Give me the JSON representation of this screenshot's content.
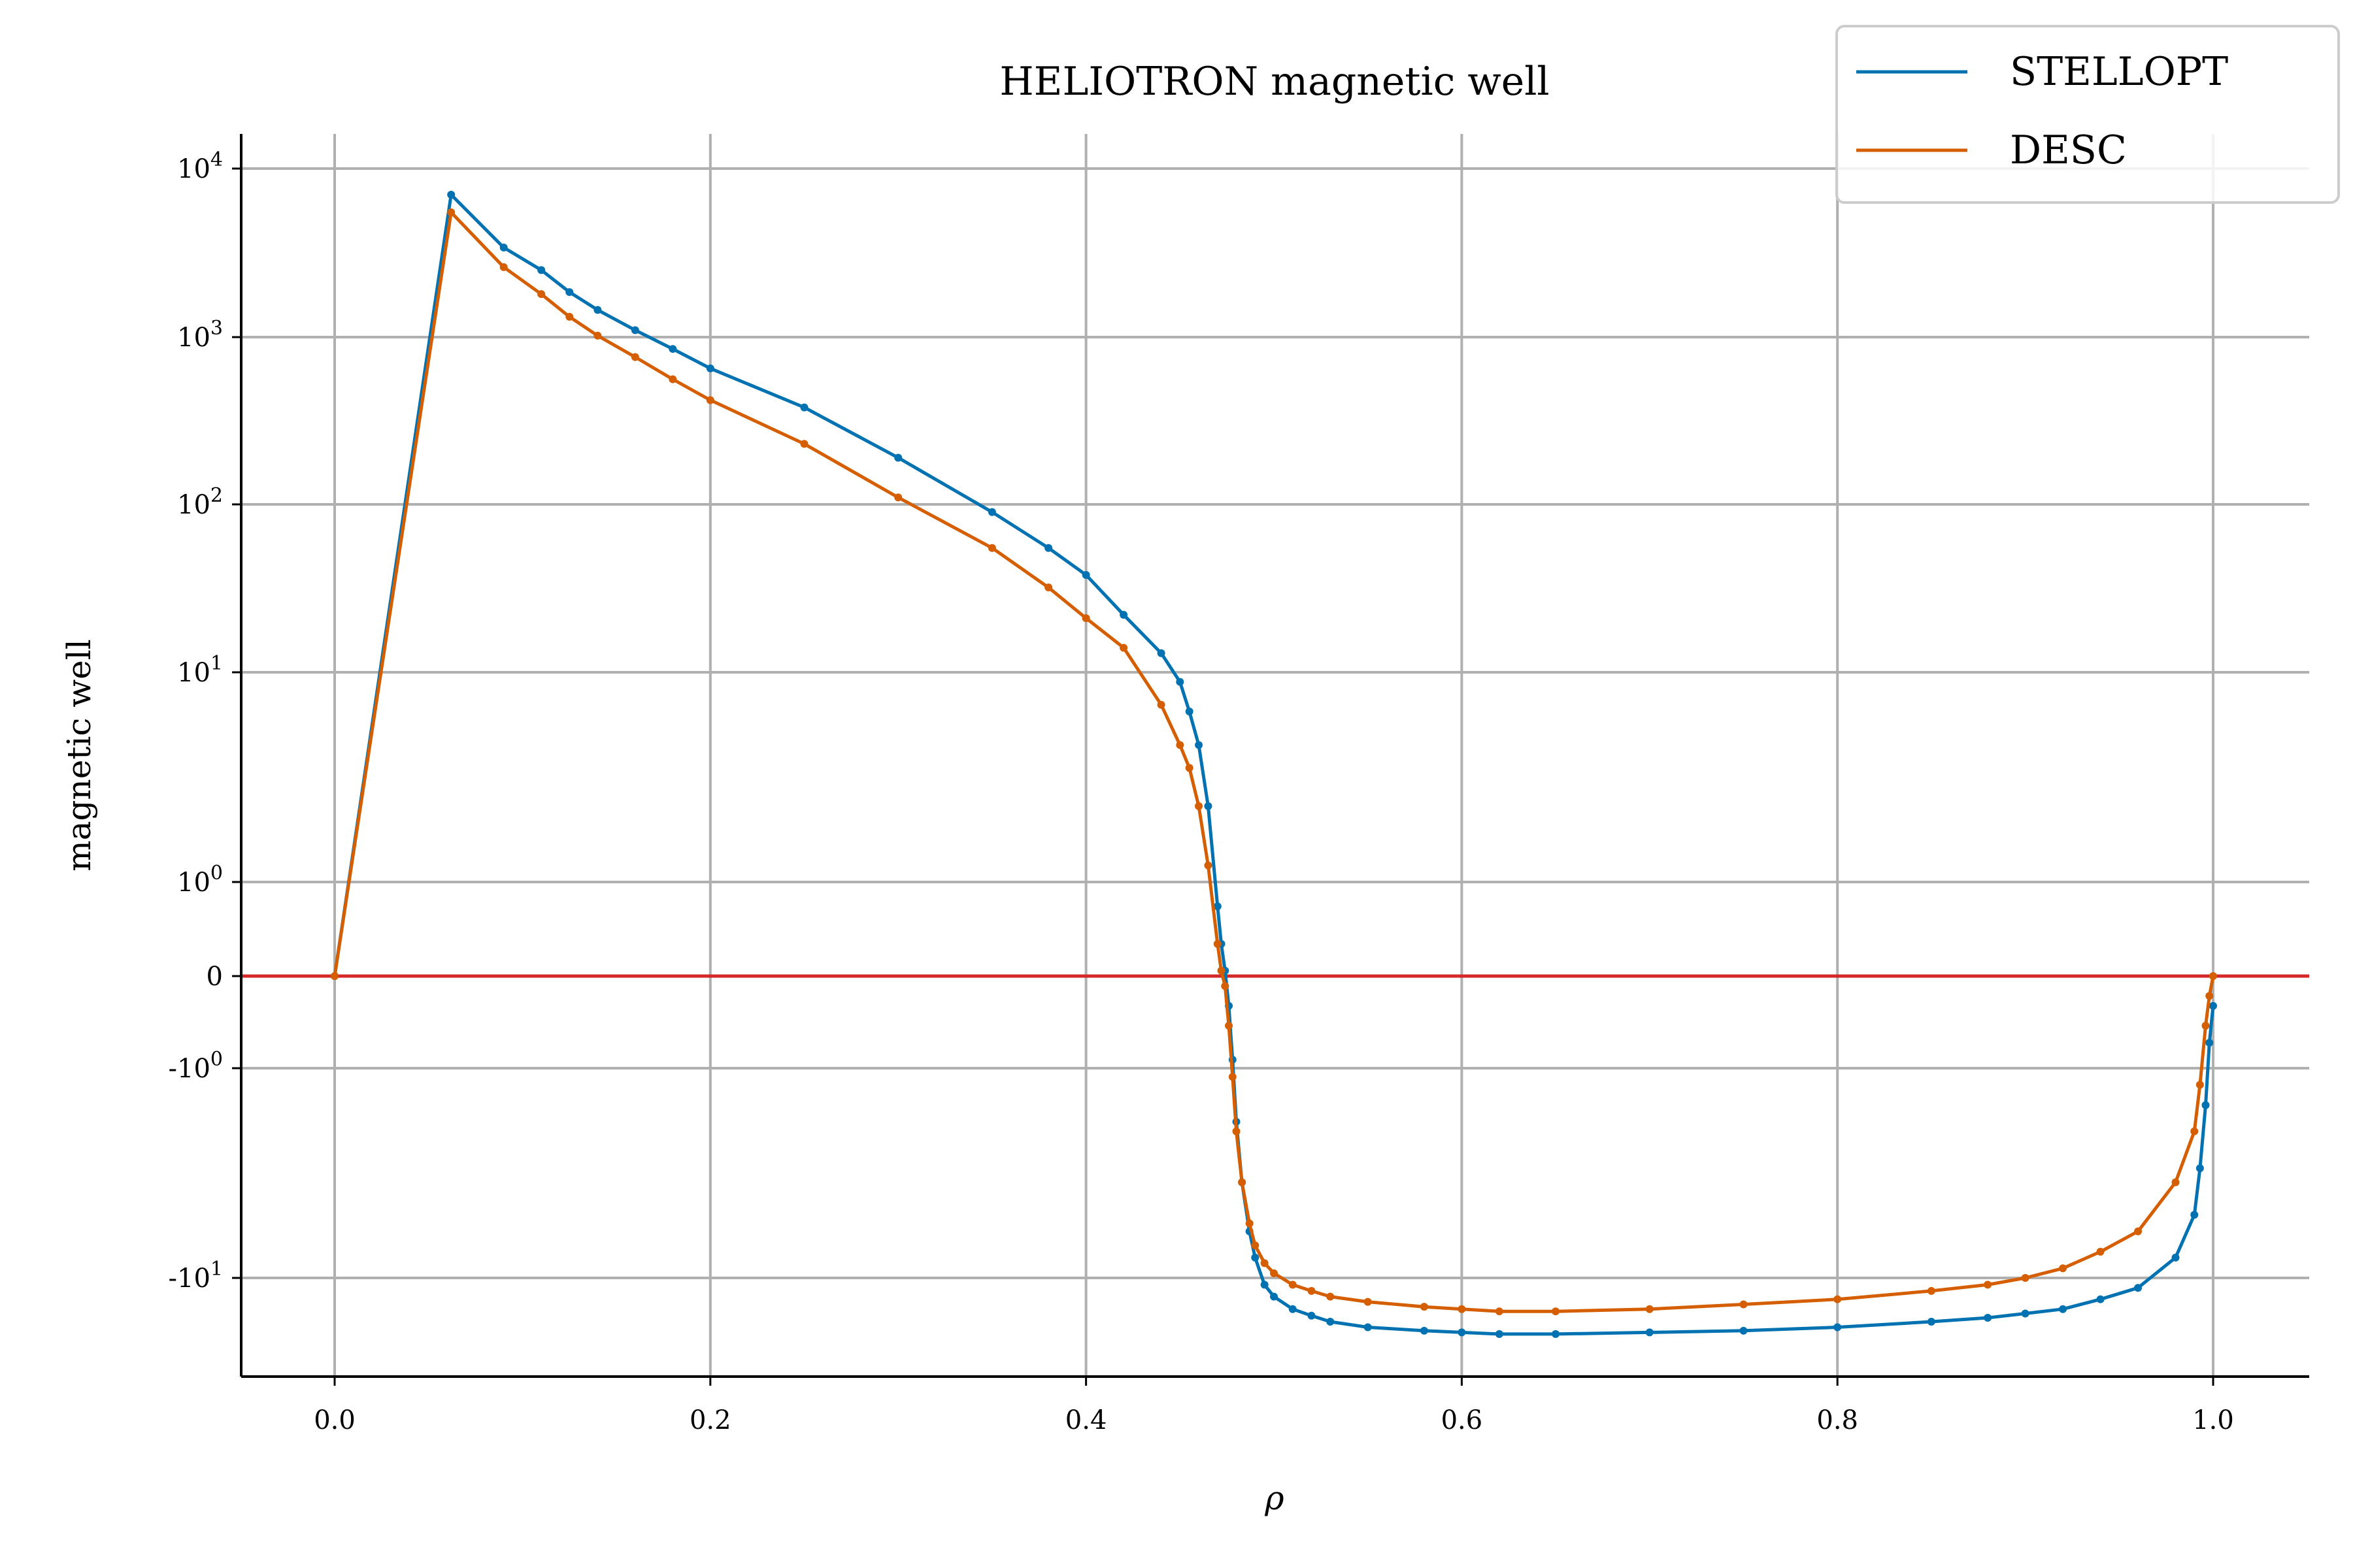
{
  "chart_data": {
    "type": "line",
    "title": "HELIOTRON magnetic well",
    "xlabel": "ρ",
    "ylabel": "magnetic well",
    "y_scale": "symlog",
    "xlim": [
      -0.05,
      1.05
    ],
    "ylim": [
      -40,
      15000
    ],
    "grid": true,
    "legend_placement": "top-right",
    "x_ticks": [
      0.0,
      0.2,
      0.4,
      0.6,
      0.8,
      1.0
    ],
    "x_tick_labels": [
      "0.0",
      "0.2",
      "0.4",
      "0.6",
      "0.8",
      "1.0"
    ],
    "y_tick_labels": [
      {
        "value": 10000,
        "label": "10^4"
      },
      {
        "value": 1000,
        "label": "10^3"
      },
      {
        "value": 100,
        "label": "10^2"
      },
      {
        "value": 10,
        "label": "10^1"
      },
      {
        "value": 1,
        "label": "10^0"
      },
      {
        "value": 0,
        "label": "0"
      },
      {
        "value": -1,
        "label": "-10^0"
      },
      {
        "value": -10,
        "label": "-10^1"
      }
    ],
    "reference_line": {
      "y": 0,
      "color": "#d62728"
    },
    "series": [
      {
        "name": "STELLOPT",
        "color": "#0072b2",
        "x": [
          0.0,
          0.062,
          0.09,
          0.11,
          0.125,
          0.14,
          0.16,
          0.18,
          0.2,
          0.25,
          0.3,
          0.35,
          0.38,
          0.4,
          0.42,
          0.44,
          0.45,
          0.455,
          0.46,
          0.465,
          0.47,
          0.472,
          0.474,
          0.476,
          0.478,
          0.48,
          0.483,
          0.487,
          0.49,
          0.495,
          0.5,
          0.51,
          0.52,
          0.53,
          0.55,
          0.58,
          0.6,
          0.62,
          0.65,
          0.7,
          0.75,
          0.8,
          0.85,
          0.88,
          0.9,
          0.92,
          0.94,
          0.96,
          0.98,
          0.99,
          0.993,
          0.996,
          0.998,
          1.0
        ],
        "y": [
          0,
          7000,
          3400,
          2500,
          1850,
          1450,
          1100,
          850,
          650,
          380,
          190,
          90,
          55,
          38,
          22,
          13,
          9,
          6.5,
          4.5,
          2.3,
          0.7,
          0.3,
          0.05,
          -0.3,
          -0.9,
          -1.8,
          -3.5,
          -6,
          -8,
          -11,
          -13,
          -15.5,
          -17,
          -18.5,
          -20,
          -21,
          -21.5,
          -22,
          -22,
          -21.5,
          -21,
          -20,
          -18.5,
          -17.5,
          -16.5,
          -15.5,
          -13.5,
          -11.5,
          -8,
          -5,
          -3,
          -1.5,
          -0.7,
          -0.3
        ]
      },
      {
        "name": "DESC",
        "color": "#d55e00",
        "x": [
          0.0,
          0.062,
          0.09,
          0.11,
          0.125,
          0.14,
          0.16,
          0.18,
          0.2,
          0.25,
          0.3,
          0.35,
          0.38,
          0.4,
          0.42,
          0.44,
          0.45,
          0.455,
          0.46,
          0.465,
          0.47,
          0.472,
          0.474,
          0.476,
          0.478,
          0.48,
          0.483,
          0.487,
          0.49,
          0.495,
          0.5,
          0.51,
          0.52,
          0.53,
          0.55,
          0.58,
          0.6,
          0.62,
          0.65,
          0.7,
          0.75,
          0.8,
          0.85,
          0.88,
          0.9,
          0.92,
          0.94,
          0.96,
          0.98,
          0.99,
          0.993,
          0.996,
          0.998,
          1.0
        ],
        "y": [
          0,
          5500,
          2600,
          1800,
          1320,
          1020,
          760,
          560,
          420,
          230,
          110,
          55,
          32,
          21,
          14,
          7,
          4.5,
          3.5,
          2.3,
          1.2,
          0.3,
          0.05,
          -0.1,
          -0.5,
          -1.1,
          -2,
          -3.5,
          -5.5,
          -7,
          -8.5,
          -9.5,
          -11,
          -12,
          -13,
          -14,
          -15,
          -15.5,
          -16,
          -16,
          -15.5,
          -14.5,
          -13.5,
          -12,
          -11,
          -10,
          -9,
          -7.5,
          -6,
          -3.5,
          -2,
          -1.2,
          -0.5,
          -0.2,
          0
        ]
      }
    ]
  }
}
